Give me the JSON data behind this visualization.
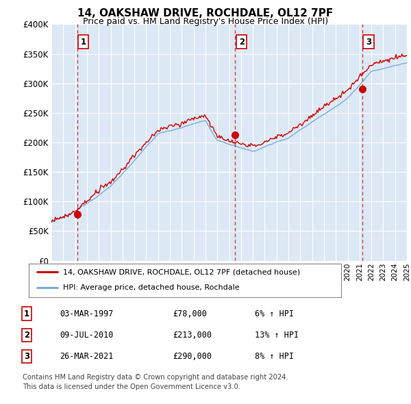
{
  "title": "14, OAKSHAW DRIVE, ROCHDALE, OL12 7PF",
  "subtitle": "Price paid vs. HM Land Registry's House Price Index (HPI)",
  "background_color": "#dce8f5",
  "ylim": [
    0,
    400000
  ],
  "yticks": [
    0,
    50000,
    100000,
    150000,
    200000,
    250000,
    300000,
    350000,
    400000
  ],
  "ytick_labels": [
    "£0",
    "£50K",
    "£100K",
    "£150K",
    "£200K",
    "£250K",
    "£300K",
    "£350K",
    "£400K"
  ],
  "x_start_year": 1995,
  "x_end_year": 2025,
  "hpi_color": "#7aacdc",
  "price_color": "#cc0000",
  "sale_events": [
    {
      "year": 1997.17,
      "price": 78000,
      "label": "1"
    },
    {
      "year": 2010.52,
      "price": 213000,
      "label": "2"
    },
    {
      "year": 2021.23,
      "price": 290000,
      "label": "3"
    }
  ],
  "legend_entries": [
    {
      "label": "14, OAKSHAW DRIVE, ROCHDALE, OL12 7PF (detached house)",
      "color": "#cc0000"
    },
    {
      "label": "HPI: Average price, detached house, Rochdale",
      "color": "#7aacdc"
    }
  ],
  "table_rows": [
    {
      "num": "1",
      "date": "03-MAR-1997",
      "price": "£78,000",
      "hpi": "6% ↑ HPI"
    },
    {
      "num": "2",
      "date": "09-JUL-2010",
      "price": "£213,000",
      "hpi": "13% ↑ HPI"
    },
    {
      "num": "3",
      "date": "26-MAR-2021",
      "price": "£290,000",
      "hpi": "8% ↑ HPI"
    }
  ],
  "footer": "Contains HM Land Registry data © Crown copyright and database right 2024.\nThis data is licensed under the Open Government Licence v3.0."
}
